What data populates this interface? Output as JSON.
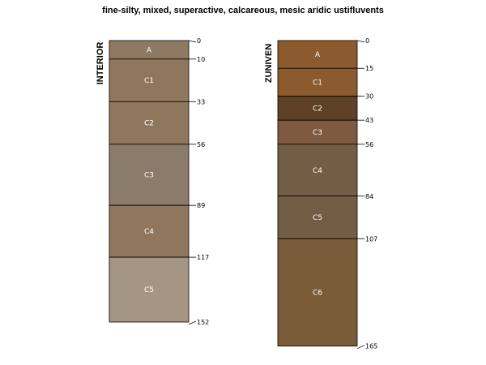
{
  "chart_data": {
    "type": "soil-profile",
    "title": "fine-silty, mixed, superactive, calcareous, mesic aridic ustifluvents",
    "depth_unit": "cm",
    "profiles": [
      {
        "name": "INTERIOR",
        "horizons": [
          {
            "name": "A",
            "top": 0,
            "bottom": 10,
            "color": "#8e7a62"
          },
          {
            "name": "C1",
            "top": 10,
            "bottom": 33,
            "color": "#8e775d"
          },
          {
            "name": "C2",
            "top": 33,
            "bottom": 56,
            "color": "#8e775d"
          },
          {
            "name": "C3",
            "top": 56,
            "bottom": 89,
            "color": "#8a7b6a"
          },
          {
            "name": "C4",
            "top": 89,
            "bottom": 117,
            "color": "#8e775d"
          },
          {
            "name": "C5",
            "top": 117,
            "bottom": 152,
            "color": "#a59583"
          }
        ],
        "depth_labels": [
          "0",
          "10",
          "33",
          "56",
          "89",
          "117",
          "152"
        ]
      },
      {
        "name": "ZUNIVEN",
        "horizons": [
          {
            "name": "A",
            "top": 0,
            "bottom": 15,
            "color": "#8b5a2e"
          },
          {
            "name": "C1",
            "top": 15,
            "bottom": 30,
            "color": "#8b5a2e"
          },
          {
            "name": "C2",
            "top": 30,
            "bottom": 43,
            "color": "#5e4126"
          },
          {
            "name": "C3",
            "top": 43,
            "bottom": 56,
            "color": "#7d5a40"
          },
          {
            "name": "C4",
            "top": 56,
            "bottom": 84,
            "color": "#735d44"
          },
          {
            "name": "C5",
            "top": 84,
            "bottom": 107,
            "color": "#735d44"
          },
          {
            "name": "C6",
            "top": 107,
            "bottom": 165,
            "color": "#7a5c38"
          }
        ],
        "depth_labels": [
          "0",
          "15",
          "30",
          "43",
          "56",
          "84",
          "107",
          "165"
        ]
      }
    ]
  }
}
